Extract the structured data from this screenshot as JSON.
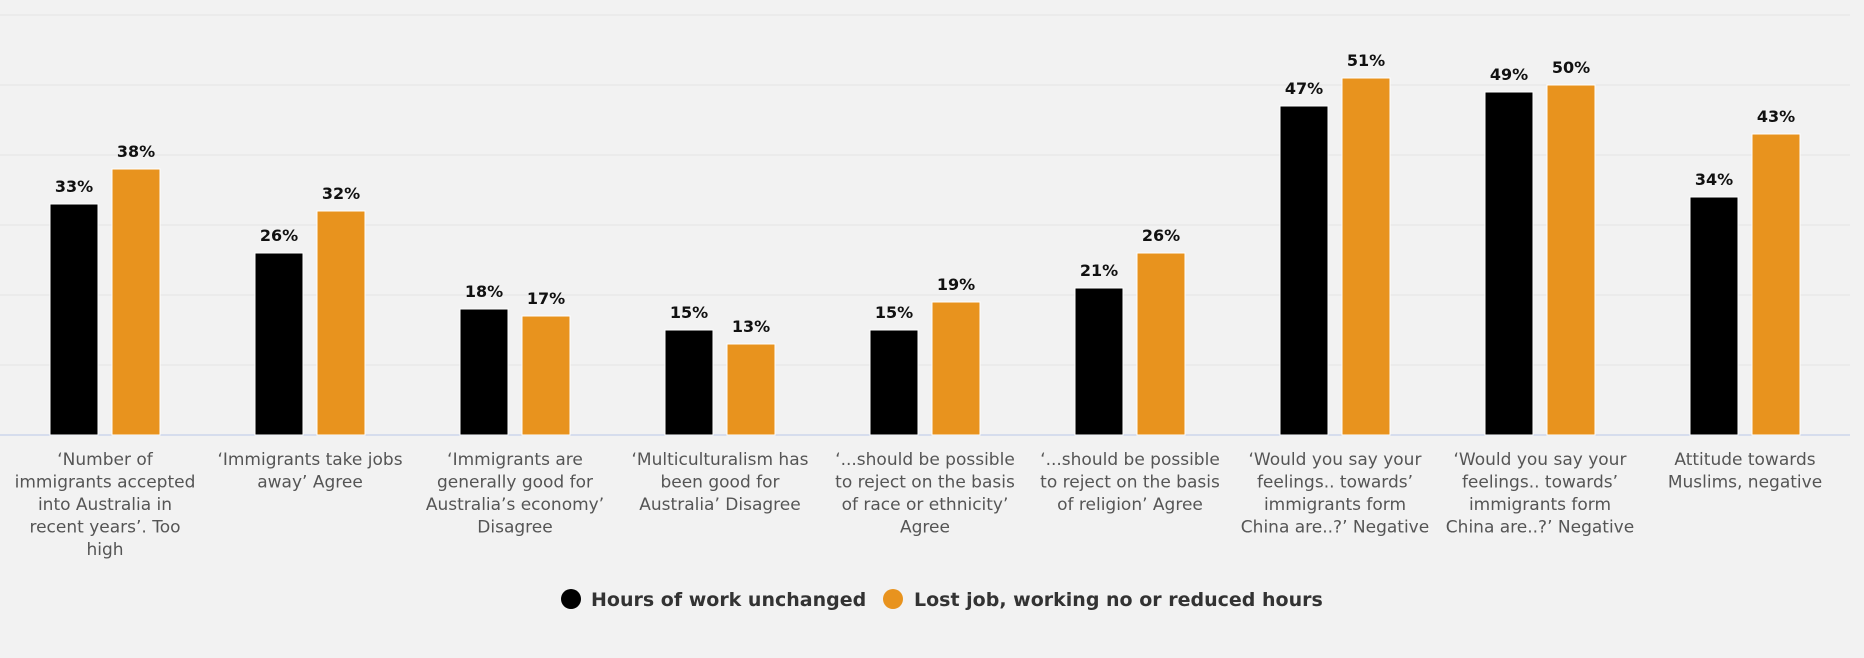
{
  "chart_data": {
    "type": "bar",
    "categories": [
      "‘Number of immigrants accepted into Australia in recent years’. Too high",
      "‘Immigrants take jobs away’ Agree",
      "‘Immigrants are generally good for Australia’s economy’ Disagree",
      "‘Multiculturalism has been good for Australia’ Disagree",
      "‘...should be possible to reject on the basis of race or ethnicity’ Agree",
      "‘...should be possible to reject on the basis of religion’ Agree",
      "‘Would you say your feelings.. towards’ immigrants form China are..?’ Negative",
      "‘Would you say your feelings.. towards’ immigrants form China are..?’ Negative",
      "Attitude towards Muslims, negative"
    ],
    "category_lines": [
      [
        "‘Number of",
        "immigrants accepted",
        "into Australia in",
        "recent years’. Too",
        "high"
      ],
      [
        "‘Immigrants take jobs",
        "away’ Agree"
      ],
      [
        "‘Immigrants are",
        "generally good for",
        "Australia’s economy’",
        "Disagree"
      ],
      [
        "‘Multiculturalism has",
        "been good for",
        "Australia’ Disagree"
      ],
      [
        "‘...should be possible",
        "to reject on the basis",
        "of race or ethnicity’",
        "Agree"
      ],
      [
        "‘...should be possible",
        "to reject on the basis",
        "of religion’ Agree"
      ],
      [
        "‘Would you say your",
        "feelings.. towards’",
        "immigrants form",
        "China are..?’ Negative"
      ],
      [
        "‘Would you say your",
        "feelings.. towards’",
        "immigrants form",
        "China are..?’ Negative"
      ],
      [
        "Attitude towards",
        "Muslims, negative"
      ]
    ],
    "series": [
      {
        "name": "Hours of work unchanged",
        "color": "#000000",
        "values": [
          33,
          26,
          18,
          15,
          15,
          21,
          47,
          49,
          34
        ],
        "labels": [
          "33%",
          "26%",
          "18%",
          "15%",
          "15%",
          "21%",
          "47%",
          "49%",
          "34%"
        ]
      },
      {
        "name": "Lost job, working no or reduced hours",
        "color": "#e8931e",
        "values": [
          38,
          32,
          17,
          13,
          19,
          26,
          51,
          50,
          43
        ],
        "labels": [
          "38%",
          "32%",
          "17%",
          "13%",
          "19%",
          "26%",
          "51%",
          "50%",
          "43%"
        ]
      }
    ],
    "ylim": [
      0,
      60
    ],
    "grid": true,
    "legend_position": "bottom-center"
  }
}
